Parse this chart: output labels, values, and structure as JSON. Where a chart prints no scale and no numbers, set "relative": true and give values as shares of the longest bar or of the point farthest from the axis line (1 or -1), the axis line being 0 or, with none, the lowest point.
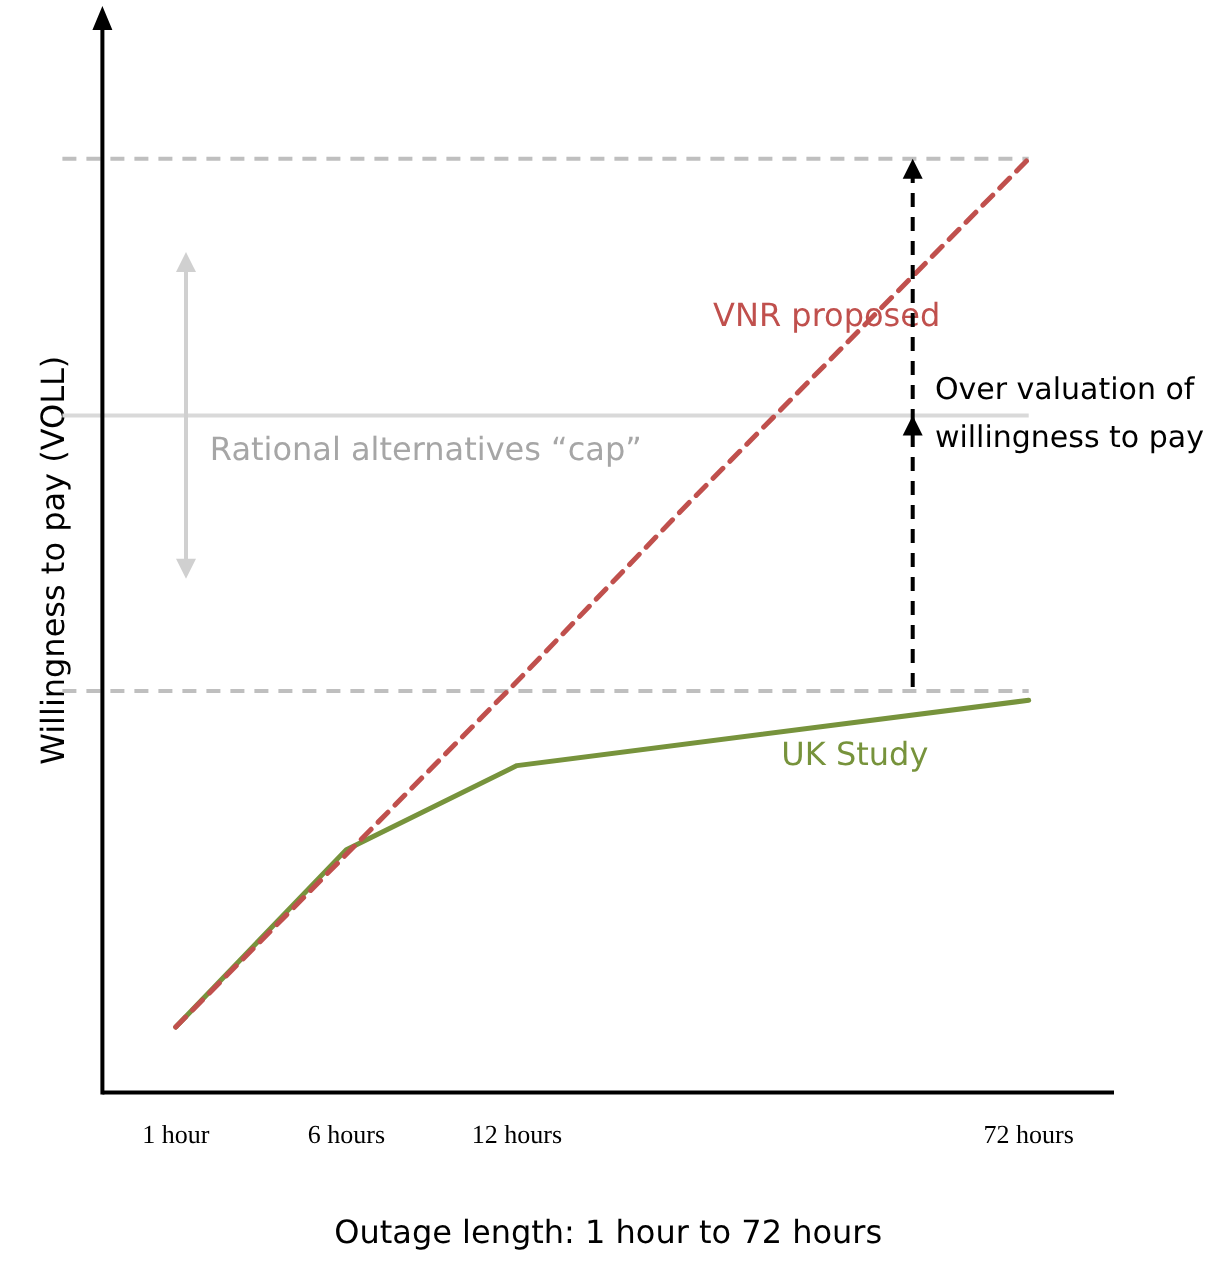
{
  "chart_data": {
    "type": "line",
    "relative": true,
    "xlabel": "Outage length: 1 hour to 72 hours",
    "ylabel": "Willingness to pay (VOLL)",
    "categories": [
      "1 hour",
      "6 hours",
      "12 hours",
      null,
      null,
      "72 hours"
    ],
    "series": [
      {
        "name": "VNR proposed",
        "color": "#c0504d",
        "line_style": "dashed",
        "values": [
          0.07,
          0.255,
          0.44,
          0.63,
          0.815,
          1
        ]
      },
      {
        "name": "UK Study",
        "color": "#77933c",
        "line_style": "solid",
        "values": [
          0.07,
          0.26,
          0.35,
          null,
          null,
          0.42
        ]
      }
    ],
    "ref_lines": [
      {
        "axis": "y",
        "value": 1,
        "color": "#bfbfbf",
        "line_style": "dashed"
      },
      {
        "axis": "y",
        "value": 0.725,
        "label": "Rational alternatives “cap”",
        "color": "#d9d9d9",
        "line_style": "solid"
      },
      {
        "axis": "y",
        "value": 0.43,
        "color": "#bfbfbf",
        "line_style": "dashed"
      }
    ],
    "annotations": [
      "Over valuation of willingness to pay"
    ],
    "marker": "none",
    "grid": false,
    "legend": false,
    "tick_labels": "x"
  }
}
